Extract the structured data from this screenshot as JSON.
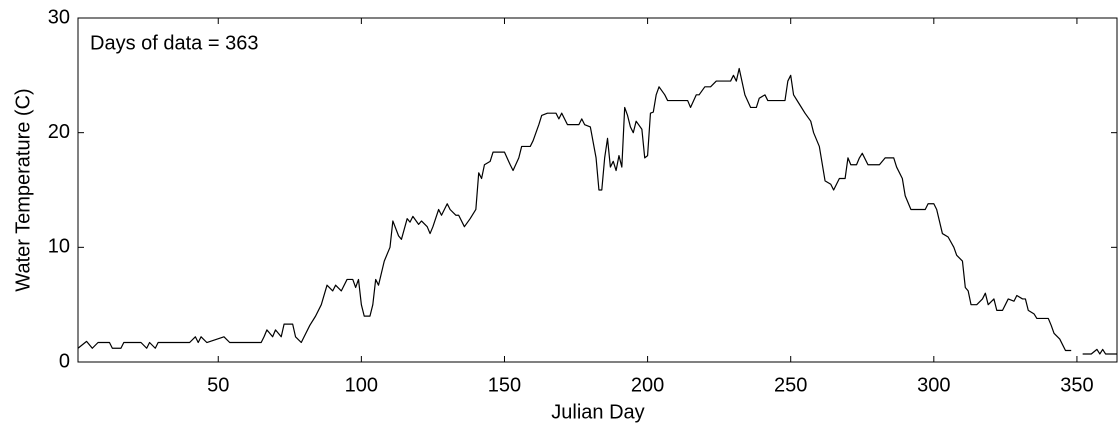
{
  "chart_data": {
    "type": "line",
    "annotation": "Days of data = 363",
    "xlabel": "Julian Day",
    "ylabel": "Water Temperature (C)",
    "xlim": [
      1,
      364
    ],
    "xticks": [
      50,
      100,
      150,
      200,
      250,
      300,
      350
    ],
    "ylim": [
      0,
      30
    ],
    "yticks": [
      0,
      10,
      20,
      30
    ],
    "grid": false,
    "series": [
      {
        "color": "#000000",
        "x": [
          1,
          4,
          6,
          8,
          12,
          13,
          16,
          17,
          23,
          25,
          26,
          28,
          29,
          40,
          42,
          43,
          44,
          46,
          52,
          54,
          61,
          65,
          66,
          67,
          69,
          70,
          72,
          73,
          76,
          77,
          79,
          80,
          82,
          84,
          86,
          88,
          90,
          91,
          93,
          95,
          97,
          98,
          99,
          100,
          101,
          103,
          104,
          105,
          106,
          108,
          110,
          111,
          113,
          114,
          116,
          117,
          118,
          120,
          121,
          123,
          124,
          125,
          127,
          128,
          130,
          131,
          133,
          134,
          136,
          138,
          140,
          141,
          142,
          143,
          145,
          146,
          150,
          152,
          153,
          155,
          156,
          159,
          160,
          162,
          163,
          165,
          168,
          169,
          170,
          172,
          176,
          177,
          178,
          180,
          182,
          183,
          184,
          185,
          186,
          187,
          188,
          189,
          190,
          191,
          192,
          193,
          194,
          195,
          196,
          198,
          199,
          200,
          201,
          202,
          203,
          204,
          206,
          207,
          211,
          214,
          215,
          217,
          218,
          220,
          222,
          224,
          229,
          230,
          231,
          232,
          234,
          236,
          238,
          239,
          241,
          242,
          248,
          249,
          250,
          251,
          253,
          255,
          257,
          258,
          260,
          262,
          264,
          265,
          266,
          267,
          269,
          270,
          271,
          273,
          274,
          275,
          277,
          281,
          283,
          286,
          287,
          289,
          290,
          292,
          297,
          298,
          300,
          301,
          303,
          305,
          307,
          308,
          310,
          311,
          312,
          313,
          315,
          317,
          318,
          319,
          321,
          322,
          324,
          325,
          326,
          328,
          329,
          331,
          332,
          333,
          335,
          336,
          340,
          341,
          342,
          344,
          345,
          346,
          348,
          350,
          352,
          355,
          357,
          358,
          359,
          360,
          364
        ],
        "values": [
          1.2,
          1.8,
          1.2,
          1.7,
          1.7,
          1.2,
          1.2,
          1.7,
          1.7,
          1.2,
          1.7,
          1.2,
          1.7,
          1.7,
          2.2,
          1.7,
          2.2,
          1.7,
          2.2,
          1.7,
          1.7,
          1.7,
          2.2,
          2.8,
          2.2,
          2.8,
          2.2,
          3.3,
          3.3,
          2.2,
          1.7,
          2.2,
          3.2,
          4,
          5,
          6.7,
          6.2,
          6.7,
          6.2,
          7.2,
          7.2,
          6.5,
          7.2,
          5,
          4,
          4,
          5,
          7.2,
          6.7,
          8.8,
          10,
          12.3,
          11,
          10.7,
          12.5,
          12.2,
          12.7,
          12,
          12.3,
          11.8,
          11.2,
          11.8,
          13.3,
          12.8,
          13.8,
          13.3,
          12.8,
          12.8,
          11.8,
          12.5,
          13.3,
          16.5,
          16,
          17.2,
          17.5,
          18.3,
          18.3,
          17.2,
          16.7,
          17.8,
          18.8,
          18.8,
          19.3,
          20.7,
          21.5,
          21.7,
          21.7,
          21.2,
          21.7,
          20.7,
          20.7,
          21.2,
          20.7,
          20.5,
          17.8,
          15,
          15,
          17.8,
          19.5,
          17,
          17.5,
          16.7,
          18,
          17,
          22.2,
          21.5,
          20.5,
          20,
          21,
          20.3,
          17.8,
          18,
          21.7,
          21.8,
          23.3,
          24,
          23.3,
          22.8,
          22.8,
          22.8,
          22.2,
          23.3,
          23.3,
          24,
          24,
          24.5,
          24.5,
          25,
          24.5,
          25.6,
          23.3,
          22.2,
          22.2,
          23,
          23.3,
          22.8,
          22.8,
          24.5,
          25,
          23.3,
          22.5,
          21.7,
          21,
          20,
          18.8,
          15.8,
          15.5,
          15,
          15.5,
          16,
          16,
          17.8,
          17.2,
          17.2,
          17.8,
          18.2,
          17.2,
          17.2,
          17.8,
          17.8,
          17,
          16,
          14.5,
          13.3,
          13.3,
          13.8,
          13.8,
          13.3,
          11.2,
          10.9,
          10,
          9.3,
          8.8,
          6.5,
          6.2,
          5,
          5,
          5.5,
          6,
          5,
          5.5,
          4.5,
          4.5,
          5,
          5.5,
          5.3,
          5.8,
          5.5,
          5.5,
          4.5,
          4.2,
          3.8,
          3.8,
          3.2,
          2.5,
          2,
          1.5,
          1,
          1,
          null,
          0.7,
          0.7,
          1.1,
          0.7,
          1.1,
          0.7,
          0.7
        ]
      }
    ]
  }
}
